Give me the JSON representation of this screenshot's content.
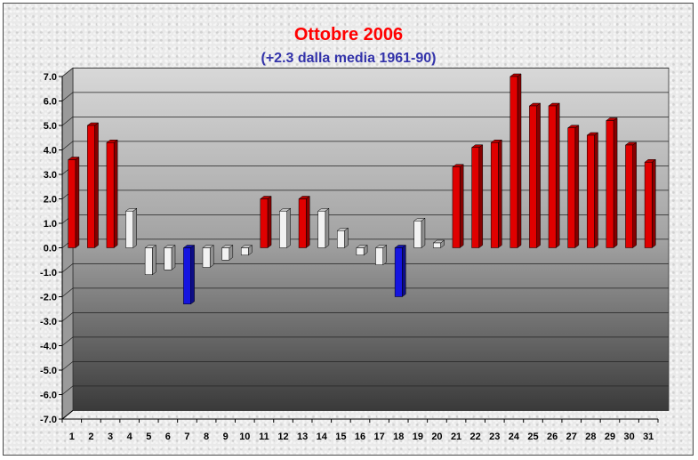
{
  "colors": {
    "positive_strong": "#e00000",
    "neutral": "#f2f2f2",
    "negative_strong": "#1515e0",
    "title": "#ff0000",
    "subtitle": "#3333aa"
  },
  "chart_data": {
    "type": "bar",
    "title": "Ottobre 2006",
    "subtitle": "(+2.3 dalla media 1961-90)",
    "xlabel": "",
    "ylabel": "",
    "ylim": [
      -7,
      7
    ],
    "yticks": [
      "7.0",
      "6.0",
      "5.0",
      "4.0",
      "3.0",
      "2.0",
      "1.0",
      "0.0",
      "-1.0",
      "-2.0",
      "-3.0",
      "-4.0",
      "-5.0",
      "-6.0",
      "-7.0"
    ],
    "grid": true,
    "legend": "none",
    "categories": [
      "1",
      "2",
      "3",
      "4",
      "5",
      "6",
      "7",
      "8",
      "9",
      "10",
      "11",
      "12",
      "13",
      "14",
      "15",
      "16",
      "17",
      "18",
      "19",
      "20",
      "21",
      "22",
      "23",
      "24",
      "25",
      "26",
      "27",
      "28",
      "29",
      "30",
      "31"
    ],
    "values": [
      3.6,
      5.0,
      4.3,
      1.5,
      -1.1,
      -0.9,
      -2.3,
      -0.8,
      -0.5,
      -0.3,
      2.0,
      1.5,
      2.0,
      1.5,
      0.7,
      -0.3,
      -0.7,
      -2.0,
      1.1,
      0.2,
      3.3,
      4.1,
      4.3,
      7.0,
      5.8,
      5.8,
      4.9,
      4.6,
      5.2,
      4.2,
      3.5
    ],
    "bar_colors": [
      "#e00000",
      "#e00000",
      "#e00000",
      "#f2f2f2",
      "#f2f2f2",
      "#f2f2f2",
      "#1515e0",
      "#f2f2f2",
      "#f2f2f2",
      "#f2f2f2",
      "#e00000",
      "#f2f2f2",
      "#e00000",
      "#f2f2f2",
      "#f2f2f2",
      "#f2f2f2",
      "#f2f2f2",
      "#1515e0",
      "#f2f2f2",
      "#f2f2f2",
      "#e00000",
      "#e00000",
      "#e00000",
      "#e00000",
      "#e00000",
      "#e00000",
      "#e00000",
      "#e00000",
      "#e00000",
      "#e00000",
      "#e00000"
    ]
  }
}
